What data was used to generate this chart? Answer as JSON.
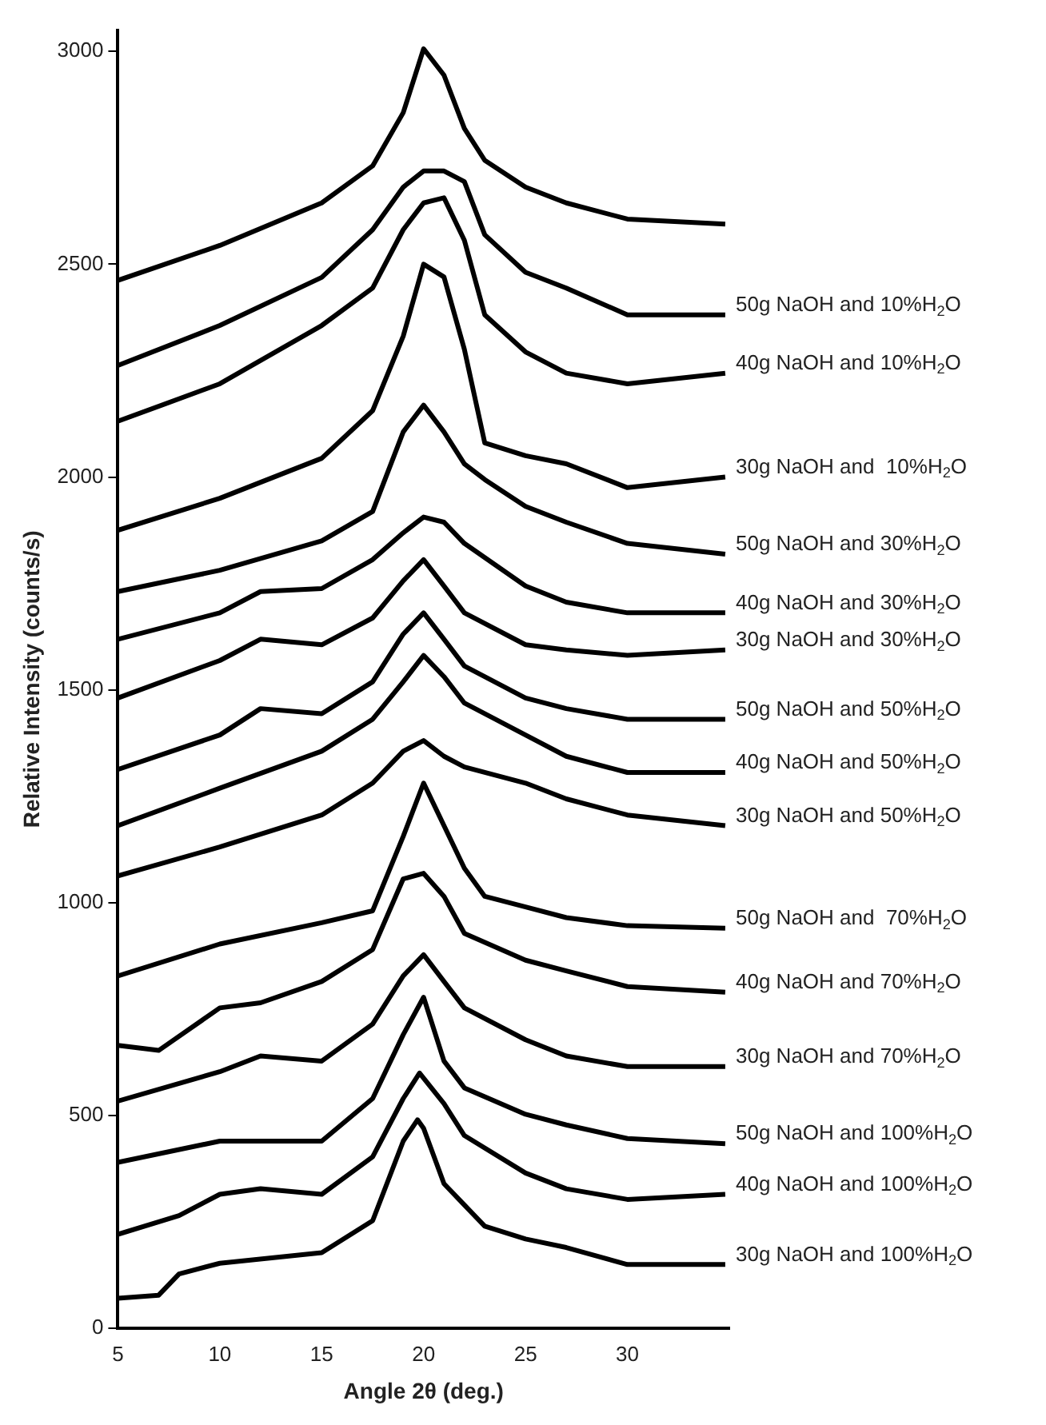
{
  "chart_data": {
    "type": "line",
    "xlabel": "Angle 2θ (deg.)",
    "ylabel": "Relative Intensity (counts/s)",
    "xlim": [
      5,
      35
    ],
    "xticks": [
      5,
      10,
      15,
      20,
      25,
      30
    ],
    "ylim": [
      0,
      3050
    ],
    "yticks": [
      0,
      500,
      1000,
      1500,
      2000,
      2500,
      3000
    ],
    "grid": false,
    "legend": false,
    "marker": "none",
    "line_style": "solid",
    "series": [
      {
        "color": "#000000",
        "x": [
          5,
          10,
          15,
          17.5,
          19,
          20,
          21,
          22,
          23,
          25,
          27,
          30,
          34.8
        ],
        "values": [
          2462,
          2544,
          2644,
          2731,
          2856,
          3006,
          2944,
          2819,
          2744,
          2681,
          2644,
          2606,
          2594
        ]
      },
      {
        "name": "50g NaOH and 10%H$_{2}$O",
        "color": "#000000",
        "x": [
          5,
          10,
          15,
          17.5,
          19,
          20,
          21,
          22,
          23,
          25,
          27,
          30,
          34.8
        ],
        "values": [
          2262,
          2356,
          2469,
          2581,
          2681,
          2719,
          2719,
          2694,
          2569,
          2481,
          2444,
          2381,
          2381
        ]
      },
      {
        "name": "40g NaOH and 10%H$_{2}$O",
        "color": "#000000",
        "x": [
          5,
          10,
          15,
          17.5,
          19,
          20,
          21,
          22,
          23,
          25,
          27,
          30,
          34.8
        ],
        "values": [
          2131,
          2219,
          2356,
          2444,
          2581,
          2644,
          2656,
          2556,
          2381,
          2294,
          2244,
          2219,
          2244
        ]
      },
      {
        "name": "30g NaOH and  10%H$_{2}$O",
        "color": "#000000",
        "x": [
          5,
          10,
          15,
          17.5,
          19,
          20,
          21,
          22,
          23,
          25,
          27,
          30,
          34.8
        ],
        "values": [
          1875,
          1950,
          2044,
          2156,
          2331,
          2500,
          2470,
          2300,
          2080,
          2050,
          2031,
          1975,
          2000
        ]
      },
      {
        "name": "50g NaOH and 30%H$_{2}$O",
        "color": "#000000",
        "x": [
          5,
          10,
          15,
          17.5,
          19,
          20,
          21,
          22,
          23,
          25,
          27,
          30,
          34.8
        ],
        "values": [
          1731,
          1781,
          1850,
          1919,
          2106,
          2169,
          2106,
          2031,
          1994,
          1931,
          1894,
          1844,
          1819
        ]
      },
      {
        "name": "40g NaOH and 30%H$_{2}$O",
        "color": "#000000",
        "x": [
          5,
          10,
          12,
          15,
          17.5,
          19,
          20,
          21,
          22,
          25,
          27,
          30,
          34.8
        ],
        "values": [
          1619,
          1681,
          1731,
          1738,
          1806,
          1869,
          1906,
          1894,
          1844,
          1744,
          1706,
          1681,
          1681
        ]
      },
      {
        "name": "30g NaOH and 30%H$_{2}$O",
        "color": "#000000",
        "x": [
          5,
          10,
          12,
          15,
          17.5,
          19,
          20,
          21,
          22,
          25,
          27,
          30,
          34.8
        ],
        "values": [
          1481,
          1569,
          1619,
          1606,
          1669,
          1756,
          1806,
          1744,
          1681,
          1606,
          1594,
          1581,
          1594
        ]
      },
      {
        "name": "50g NaOH and 50%H$_{2}$O",
        "color": "#000000",
        "x": [
          5,
          10,
          12,
          15,
          17.5,
          19,
          20,
          21,
          22,
          25,
          27,
          30,
          34.8
        ],
        "values": [
          1313,
          1394,
          1456,
          1444,
          1519,
          1631,
          1681,
          1619,
          1556,
          1481,
          1456,
          1431,
          1431
        ]
      },
      {
        "name": "40g NaOH and 50%H$_{2}$O",
        "color": "#000000",
        "x": [
          5,
          10,
          15,
          17.5,
          19,
          20,
          21,
          22,
          25,
          27,
          30,
          34.8
        ],
        "values": [
          1181,
          1269,
          1356,
          1431,
          1519,
          1581,
          1531,
          1469,
          1394,
          1344,
          1306,
          1306
        ]
      },
      {
        "name": "30g NaOH and 50%H$_{2}$O",
        "color": "#000000",
        "x": [
          5,
          10,
          15,
          17.5,
          19,
          20,
          21,
          22,
          25,
          27,
          30,
          34.8
        ],
        "values": [
          1063,
          1131,
          1206,
          1281,
          1356,
          1381,
          1344,
          1319,
          1281,
          1244,
          1206,
          1181
        ]
      },
      {
        "name": "50g NaOH and  70%H$_{2}$O",
        "color": "#000000",
        "x": [
          5,
          10,
          15,
          17.5,
          19,
          20,
          21,
          22,
          23,
          25,
          27,
          30,
          34.8
        ],
        "values": [
          828,
          903,
          953,
          981,
          1156,
          1281,
          1181,
          1081,
          1015,
          990,
          965,
          946,
          940
        ]
      },
      {
        "name": "40g NaOH and 70%H$_{2}$O",
        "color": "#000000",
        "x": [
          5,
          7,
          10,
          12,
          15,
          17.5,
          19,
          20,
          21,
          22,
          25,
          27,
          30,
          34.8
        ],
        "values": [
          665,
          653,
          753,
          765,
          815,
          890,
          1056,
          1069,
          1015,
          928,
          865,
          840,
          803,
          790
        ]
      },
      {
        "name": "30g NaOH and 70%H$_{2}$O",
        "color": "#000000",
        "x": [
          5,
          10,
          12,
          15,
          17.5,
          19,
          20,
          21,
          22,
          25,
          27,
          30,
          34.8
        ],
        "values": [
          534,
          603,
          640,
          628,
          715,
          828,
          878,
          815,
          753,
          678,
          640,
          615,
          615
        ]
      },
      {
        "name": "50g NaOH and 100%H$_{2}$O",
        "color": "#000000",
        "x": [
          5,
          10,
          15,
          17.5,
          19,
          20,
          21,
          22,
          25,
          27,
          30,
          34.8
        ],
        "values": [
          390,
          440,
          440,
          540,
          690,
          778,
          628,
          565,
          503,
          478,
          446,
          434
        ]
      },
      {
        "name": "40g NaOH and 100%H$_{2}$O",
        "color": "#000000",
        "x": [
          5,
          8,
          10,
          12,
          15,
          17.5,
          19,
          19.8,
          21,
          22,
          25,
          27,
          30,
          34.8
        ],
        "values": [
          221,
          265,
          315,
          328,
          315,
          403,
          540,
          600,
          528,
          453,
          365,
          328,
          303,
          315
        ]
      },
      {
        "name": "30g NaOH and 100%H$_{2}$O",
        "color": "#000000",
        "x": [
          5,
          7,
          8,
          10,
          15,
          17.5,
          19,
          19.7,
          20,
          21,
          22,
          23,
          25,
          27,
          30,
          34.8
        ],
        "values": [
          71,
          78,
          128,
          153,
          178,
          253,
          440,
          490,
          470,
          340,
          290,
          240,
          210,
          190,
          150,
          150
        ]
      }
    ]
  }
}
